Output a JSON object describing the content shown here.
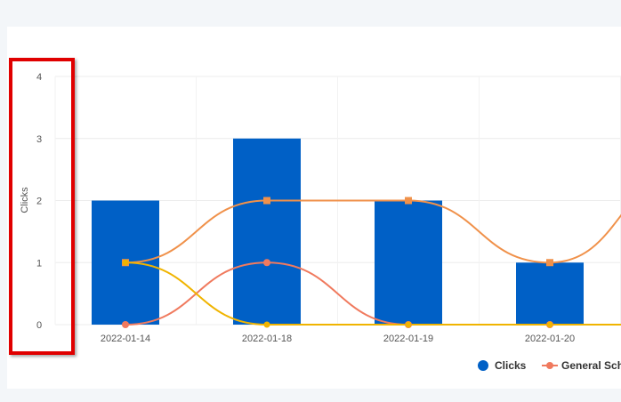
{
  "chart_data": {
    "type": "bar",
    "categories": [
      "2022-01-14",
      "2022-01-18",
      "2022-01-19",
      "2022-01-20",
      ""
    ],
    "ylabel": "Clicks",
    "ylim": [
      0,
      4
    ],
    "yticks": [
      "0",
      "1",
      "2",
      "3",
      "4"
    ],
    "grid": true,
    "legend_position": "bottom",
    "series": [
      {
        "name": "Clicks",
        "kind": "bar",
        "color": "#0060c6",
        "values": [
          2,
          3,
          2,
          1,
          null
        ]
      },
      {
        "name": "General Sche",
        "kind": "line",
        "marker": "circle",
        "color": "#f07a5e",
        "values": [
          0,
          1,
          0,
          0,
          0
        ]
      },
      {
        "name": "",
        "kind": "line",
        "marker": "square",
        "color": "#f0914a",
        "values": [
          1,
          2,
          2,
          1,
          2.5
        ]
      },
      {
        "name": "",
        "kind": "line",
        "marker": "diamond",
        "color": "#f0b400",
        "values": [
          1,
          0,
          0,
          0,
          0
        ]
      }
    ]
  },
  "highlight": {
    "color": "#e00000"
  }
}
